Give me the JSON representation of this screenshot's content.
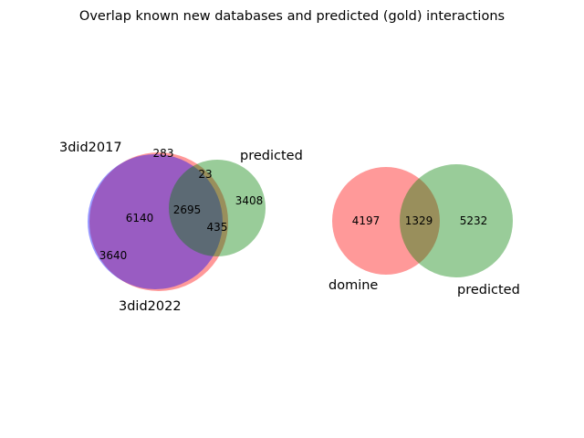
{
  "chart_data": [
    {
      "type": "venn3",
      "title": "Overlap known new databases and predicted (gold) interactions",
      "sets": [
        {
          "name": "3did2017",
          "color": "#ff0000",
          "alpha": 0.4
        },
        {
          "name": "3did2022",
          "color": "#0000ff",
          "alpha": 0.4
        },
        {
          "name": "predicted",
          "color": "#008000",
          "alpha": 0.4
        }
      ],
      "regions": [
        {
          "sets": [
            "3did2017"
          ],
          "value": 283
        },
        {
          "sets": [
            "3did2017",
            "predicted"
          ],
          "value": 23
        },
        {
          "sets": [
            "3did2017",
            "3did2022"
          ],
          "value": 6140
        },
        {
          "sets": [
            "3did2017",
            "3did2022",
            "predicted"
          ],
          "value": 2695
        },
        {
          "sets": [
            "3did2022",
            "predicted"
          ],
          "value": 435
        },
        {
          "sets": [
            "predicted"
          ],
          "value": 3408
        },
        {
          "sets": [
            "3did2022"
          ],
          "value": 3640
        }
      ]
    },
    {
      "type": "venn2",
      "sets": [
        {
          "name": "domine",
          "color": "#ff0000",
          "alpha": 0.4
        },
        {
          "name": "predicted",
          "color": "#008000",
          "alpha": 0.4
        }
      ],
      "regions": [
        {
          "sets": [
            "domine"
          ],
          "value": 4197
        },
        {
          "sets": [
            "domine",
            "predicted"
          ],
          "value": 1329
        },
        {
          "sets": [
            "predicted"
          ],
          "value": 5232
        }
      ]
    }
  ]
}
